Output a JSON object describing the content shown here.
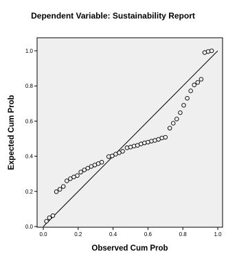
{
  "chart_data": {
    "type": "scatter",
    "title": "Dependent Variable: Sustainability Report",
    "xlabel": "Observed Cum Prob",
    "ylabel": "Expected Cum Prob",
    "xlim": [
      0.0,
      1.0
    ],
    "ylim": [
      0.0,
      1.0
    ],
    "x_ticks": [
      "0.0",
      "0.2",
      "0.4",
      "0.6",
      "0.8",
      "1.0"
    ],
    "y_ticks": [
      "0.0",
      "0.2",
      "0.4",
      "0.6",
      "0.8",
      "1.0"
    ],
    "grid": false,
    "reference_line": {
      "from": [
        0,
        0
      ],
      "to": [
        1,
        1
      ]
    },
    "points": [
      [
        0.018,
        0.03
      ],
      [
        0.035,
        0.05
      ],
      [
        0.055,
        0.062
      ],
      [
        0.075,
        0.198
      ],
      [
        0.095,
        0.212
      ],
      [
        0.115,
        0.228
      ],
      [
        0.135,
        0.26
      ],
      [
        0.155,
        0.272
      ],
      [
        0.175,
        0.282
      ],
      [
        0.195,
        0.29
      ],
      [
        0.215,
        0.31
      ],
      [
        0.235,
        0.322
      ],
      [
        0.255,
        0.332
      ],
      [
        0.275,
        0.342
      ],
      [
        0.295,
        0.35
      ],
      [
        0.315,
        0.358
      ],
      [
        0.335,
        0.366
      ],
      [
        0.375,
        0.398
      ],
      [
        0.395,
        0.402
      ],
      [
        0.415,
        0.412
      ],
      [
        0.435,
        0.42
      ],
      [
        0.455,
        0.428
      ],
      [
        0.48,
        0.448
      ],
      [
        0.5,
        0.452
      ],
      [
        0.52,
        0.458
      ],
      [
        0.54,
        0.462
      ],
      [
        0.56,
        0.47
      ],
      [
        0.58,
        0.476
      ],
      [
        0.6,
        0.48
      ],
      [
        0.62,
        0.486
      ],
      [
        0.64,
        0.49
      ],
      [
        0.66,
        0.496
      ],
      [
        0.68,
        0.504
      ],
      [
        0.7,
        0.508
      ],
      [
        0.725,
        0.56
      ],
      [
        0.745,
        0.588
      ],
      [
        0.765,
        0.612
      ],
      [
        0.785,
        0.648
      ],
      [
        0.805,
        0.69
      ],
      [
        0.825,
        0.73
      ],
      [
        0.845,
        0.772
      ],
      [
        0.865,
        0.806
      ],
      [
        0.885,
        0.82
      ],
      [
        0.905,
        0.838
      ],
      [
        0.925,
        0.99
      ],
      [
        0.945,
        0.996
      ],
      [
        0.965,
        1.0
      ]
    ]
  }
}
